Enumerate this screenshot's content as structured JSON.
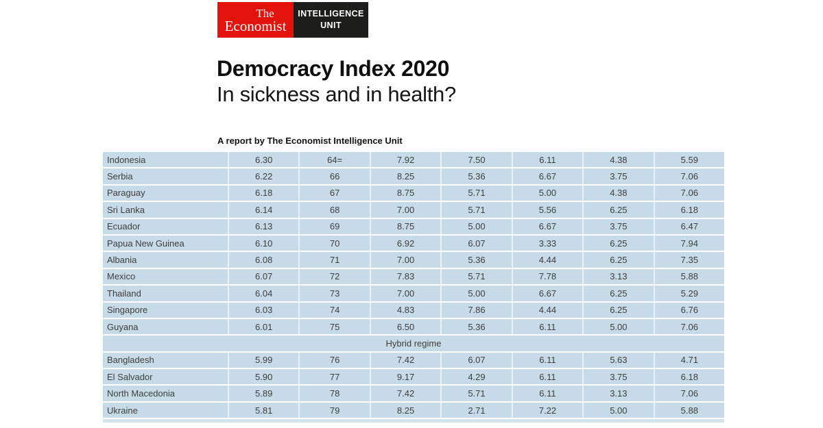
{
  "logo": {
    "masthead_line1": "The",
    "masthead_line2": "Economist",
    "unit_line1": "INTELLIGENCE",
    "unit_line2": "UNIT",
    "red_color": "#e3120b",
    "black_color": "#1d1d1b"
  },
  "header": {
    "title": "Democracy Index 2020",
    "subtitle": "In sickness and in health?",
    "report_byline": "A report by The Economist Intelligence Unit"
  },
  "table": {
    "row_bg_color": "#c6dbe7",
    "rows": [
      {
        "type": "data",
        "country": "Indonesia",
        "values": [
          "6.30",
          "64=",
          "7.92",
          "7.50",
          "6.11",
          "4.38",
          "5.59"
        ]
      },
      {
        "type": "data",
        "country": "Serbia",
        "values": [
          "6.22",
          "66",
          "8.25",
          "5.36",
          "6.67",
          "3.75",
          "7.06"
        ]
      },
      {
        "type": "data",
        "country": "Paraguay",
        "values": [
          "6.18",
          "67",
          "8.75",
          "5.71",
          "5.00",
          "4.38",
          "7.06"
        ]
      },
      {
        "type": "data",
        "country": "Sri Lanka",
        "values": [
          "6.14",
          "68",
          "7.00",
          "5.71",
          "5.56",
          "6.25",
          "6.18"
        ]
      },
      {
        "type": "data",
        "country": "Ecuador",
        "values": [
          "6.13",
          "69",
          "8.75",
          "5.00",
          "6.67",
          "3.75",
          "6.47"
        ]
      },
      {
        "type": "data",
        "country": "Papua New Guinea",
        "values": [
          "6.10",
          "70",
          "6.92",
          "6.07",
          "3.33",
          "6.25",
          "7.94"
        ]
      },
      {
        "type": "data",
        "country": "Albania",
        "values": [
          "6.08",
          "71",
          "7.00",
          "5.36",
          "4.44",
          "6.25",
          "7.35"
        ]
      },
      {
        "type": "data",
        "country": "Mexico",
        "values": [
          "6.07",
          "72",
          "7.83",
          "5.71",
          "7.78",
          "3.13",
          "5.88"
        ]
      },
      {
        "type": "data",
        "country": "Thailand",
        "values": [
          "6.04",
          "73",
          "7.00",
          "5.00",
          "6.67",
          "6.25",
          "5.29"
        ]
      },
      {
        "type": "data",
        "country": "Singapore",
        "values": [
          "6.03",
          "74",
          "4.83",
          "7.86",
          "4.44",
          "6.25",
          "6.76"
        ]
      },
      {
        "type": "data",
        "country": "Guyana",
        "values": [
          "6.01",
          "75",
          "6.50",
          "5.36",
          "6.11",
          "5.00",
          "7.06"
        ]
      },
      {
        "type": "section",
        "label": "Hybrid regime"
      },
      {
        "type": "data",
        "country": "Bangladesh",
        "values": [
          "5.99",
          "76",
          "7.42",
          "6.07",
          "6.11",
          "5.63",
          "4.71"
        ]
      },
      {
        "type": "data",
        "country": "El Salvador",
        "values": [
          "5.90",
          "77",
          "9.17",
          "4.29",
          "6.11",
          "3.75",
          "6.18"
        ]
      },
      {
        "type": "data",
        "country": "North Macedonia",
        "values": [
          "5.89",
          "78",
          "7.42",
          "5.71",
          "6.11",
          "3.13",
          "7.06"
        ]
      },
      {
        "type": "data",
        "country": "Ukraine",
        "values": [
          "5.81",
          "79",
          "8.25",
          "2.71",
          "7.22",
          "5.00",
          "5.88"
        ]
      }
    ]
  }
}
